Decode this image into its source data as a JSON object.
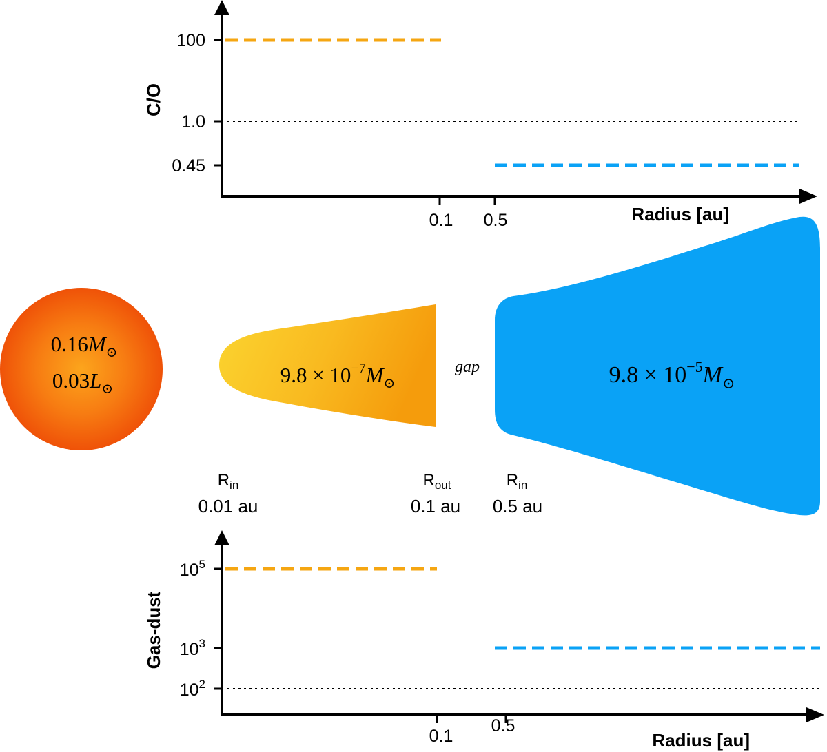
{
  "colors": {
    "inner_disk": "#f5a612",
    "outer_disk": "#0aa2f6",
    "star_edge": "#ef5208",
    "star_core": "#fca51c",
    "axis": "#000000"
  },
  "top_plot": {
    "ylabel": "C/O",
    "xlabel": "Radius [au]",
    "yticks": [
      "100",
      "1.0",
      "0.45"
    ],
    "xticks": [
      "0.1",
      "0.5"
    ],
    "inner_value": "100",
    "outer_value": "0.45",
    "reference": "1.0"
  },
  "bottom_plot": {
    "ylabel": "Gas-dust",
    "xlabel": "Radius [au]",
    "yticks": [
      {
        "base": "10",
        "exp": "5"
      },
      {
        "base": "10",
        "exp": "3"
      },
      {
        "base": "10",
        "exp": "2"
      }
    ],
    "xticks": [
      "0.1",
      "0.5"
    ],
    "inner_value": "10^5",
    "outer_value": "10^3",
    "reference": "10^2"
  },
  "star": {
    "mass": {
      "value": "0.16",
      "symbol": "M",
      "sub": "⊙"
    },
    "luminosity": {
      "value": "0.03",
      "symbol": "L",
      "sub": "⊙"
    }
  },
  "inner_disk": {
    "mass": {
      "mantissa": "9.8",
      "times": "×",
      "base": "10",
      "exp": "−7",
      "symbol": "M",
      "sub": "⊙"
    }
  },
  "gap_label": "gap",
  "outer_disk": {
    "mass": {
      "mantissa": "9.8",
      "times": "×",
      "base": "10",
      "exp": "−5",
      "symbol": "M",
      "sub": "⊙"
    }
  },
  "radii": [
    {
      "symbol": "R",
      "sub": "in",
      "value": "0.01 au"
    },
    {
      "symbol": "R",
      "sub": "out",
      "value": "0.1 au"
    },
    {
      "symbol": "R",
      "sub": "in",
      "value": "0.5 au"
    }
  ]
}
